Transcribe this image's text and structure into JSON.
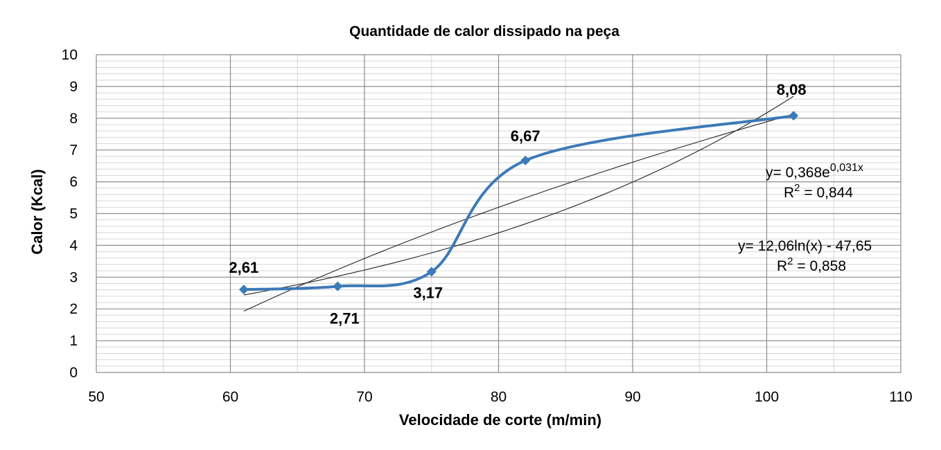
{
  "chart_data": {
    "type": "scatter",
    "title": "Quantidade de calor dissipado na peça",
    "xlabel": "Velocidade de corte (m/min)",
    "ylabel": "Calor (Kcal)",
    "xlim": [
      50,
      110
    ],
    "ylim": [
      0,
      10
    ],
    "x_ticks": [
      "50",
      "60",
      "70",
      "80",
      "90",
      "100",
      "110"
    ],
    "y_ticks": [
      "0",
      "1",
      "2",
      "3",
      "4",
      "5",
      "6",
      "7",
      "8",
      "9",
      "10"
    ],
    "grid": "on",
    "smooth_line": true,
    "series_color": "#3D7AB8",
    "points": [
      {
        "x": 61,
        "y": 2.61,
        "label": "2,61"
      },
      {
        "x": 68,
        "y": 2.71,
        "label": "2,71"
      },
      {
        "x": 75,
        "y": 3.17,
        "label": "3,17"
      },
      {
        "x": 82,
        "y": 6.67,
        "label": "6,67"
      },
      {
        "x": 102,
        "y": 8.08,
        "label": "8,08"
      }
    ],
    "trendlines": [
      {
        "type": "exponential",
        "a": 0.368,
        "b": 0.031,
        "equation_prefix": "y= 0,368e",
        "equation_exponent": "0,031x",
        "r2_prefix": "R",
        "r2_sup": "2",
        "r2_value": " = 0,844"
      },
      {
        "type": "logarithmic",
        "a": 12.06,
        "b": -47.65,
        "equation": "y= 12,06ln(x) - 47,65",
        "r2_prefix": "R",
        "r2_sup": "2",
        "r2_value": " = 0,858"
      }
    ]
  }
}
